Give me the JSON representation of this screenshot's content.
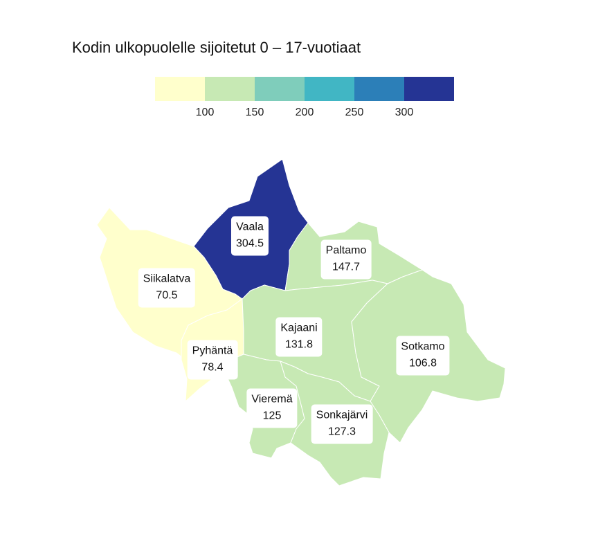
{
  "title": "Kodin ulkopuolelle sijoitetut 0 – 17-vuotiaat",
  "legend": {
    "colors": [
      "#ffffcc",
      "#c7e9b4",
      "#7fcdbb",
      "#41b6c4",
      "#2c7fb8",
      "#253494"
    ],
    "ticks": [
      "100",
      "150",
      "200",
      "250",
      "300"
    ]
  },
  "regions": [
    {
      "name": "Vaala",
      "value": "304.5",
      "color": "#253494"
    },
    {
      "name": "Paltamo",
      "value": "147.7",
      "color": "#c7e9b4"
    },
    {
      "name": "Siikalatva",
      "value": "70.5",
      "color": "#ffffcc"
    },
    {
      "name": "Kajaani",
      "value": "131.8",
      "color": "#c7e9b4"
    },
    {
      "name": "Sotkamo",
      "value": "106.8",
      "color": "#c7e9b4"
    },
    {
      "name": "Pyhäntä",
      "value": "78.4",
      "color": "#ffffcc"
    },
    {
      "name": "Vieremä",
      "value": "125",
      "color": "#c7e9b4"
    },
    {
      "name": "Sonkajärvi",
      "value": "127.3",
      "color": "#c7e9b4"
    }
  ]
}
